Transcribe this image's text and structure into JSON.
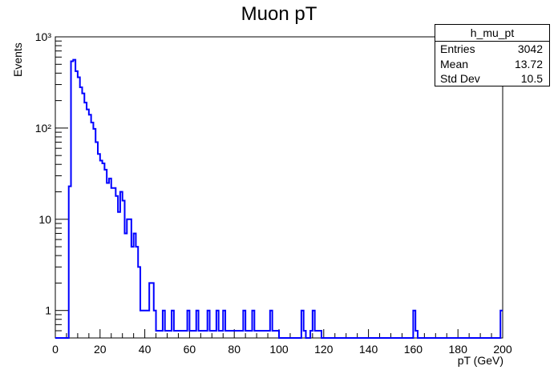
{
  "chart_data": {
    "type": "histogram",
    "title": "Muon pT",
    "xlabel": "pT (GeV)",
    "ylabel": "Events",
    "xlim": [
      0,
      200
    ],
    "ylim": [
      0.5,
      1000
    ],
    "y_scale": "log",
    "bin_width": 1,
    "x_ticks": [
      0,
      20,
      40,
      60,
      80,
      100,
      120,
      140,
      160,
      180,
      200
    ],
    "y_ticks": [
      {
        "value": 1,
        "label": "1"
      },
      {
        "value": 10,
        "label": "10"
      },
      {
        "value": 100,
        "label": "10²"
      },
      {
        "value": 1000,
        "label": "10³"
      }
    ],
    "line_color": "#0000ff",
    "bins": [
      [
        6,
        23
      ],
      [
        7,
        540
      ],
      [
        8,
        560
      ],
      [
        9,
        420
      ],
      [
        10,
        360
      ],
      [
        11,
        280
      ],
      [
        12,
        240
      ],
      [
        13,
        190
      ],
      [
        14,
        160
      ],
      [
        15,
        140
      ],
      [
        16,
        115
      ],
      [
        17,
        98
      ],
      [
        18,
        70
      ],
      [
        19,
        52
      ],
      [
        20,
        44
      ],
      [
        21,
        41
      ],
      [
        22,
        35
      ],
      [
        23,
        25
      ],
      [
        24,
        28
      ],
      [
        25,
        22
      ],
      [
        26,
        22
      ],
      [
        27,
        18
      ],
      [
        28,
        12
      ],
      [
        29,
        20
      ],
      [
        30,
        16
      ],
      [
        31,
        7
      ],
      [
        32,
        10
      ],
      [
        33,
        10
      ],
      [
        34,
        5
      ],
      [
        35,
        7
      ],
      [
        36,
        5
      ],
      [
        37,
        3
      ],
      [
        38,
        1
      ],
      [
        39,
        1
      ],
      [
        40,
        1
      ],
      [
        41,
        1
      ],
      [
        42,
        2
      ],
      [
        43,
        2
      ],
      [
        44,
        1
      ],
      [
        45,
        0.6
      ],
      [
        46,
        0.6
      ],
      [
        47,
        0.6
      ],
      [
        48,
        1
      ],
      [
        49,
        0.6
      ],
      [
        50,
        0.6
      ],
      [
        51,
        0.6
      ],
      [
        52,
        1
      ],
      [
        53,
        0.6
      ],
      [
        54,
        0.6
      ],
      [
        55,
        0.6
      ],
      [
        56,
        0.6
      ],
      [
        57,
        0.6
      ],
      [
        58,
        0.6
      ],
      [
        59,
        1
      ],
      [
        60,
        0.6
      ],
      [
        61,
        0.6
      ],
      [
        62,
        0.6
      ],
      [
        63,
        1
      ],
      [
        64,
        0.6
      ],
      [
        65,
        0.6
      ],
      [
        66,
        0.6
      ],
      [
        67,
        0.6
      ],
      [
        68,
        1
      ],
      [
        69,
        0.6
      ],
      [
        70,
        0.6
      ],
      [
        71,
        0.6
      ],
      [
        72,
        1
      ],
      [
        73,
        0.6
      ],
      [
        74,
        0.6
      ],
      [
        75,
        1
      ],
      [
        76,
        0.6
      ],
      [
        77,
        0.6
      ],
      [
        78,
        0.6
      ],
      [
        79,
        0.6
      ],
      [
        80,
        0.6
      ],
      [
        81,
        0.6
      ],
      [
        82,
        0.6
      ],
      [
        83,
        0.6
      ],
      [
        84,
        1
      ],
      [
        85,
        0.6
      ],
      [
        86,
        0.6
      ],
      [
        87,
        0.6
      ],
      [
        88,
        1
      ],
      [
        89,
        0.6
      ],
      [
        90,
        0.6
      ],
      [
        91,
        0.6
      ],
      [
        92,
        0.6
      ],
      [
        93,
        0.6
      ],
      [
        94,
        0.6
      ],
      [
        95,
        0.6
      ],
      [
        96,
        1
      ],
      [
        97,
        0.6
      ],
      [
        98,
        0.6
      ],
      [
        99,
        0.6
      ],
      [
        110,
        1
      ],
      [
        111,
        0.6
      ],
      [
        114,
        0.6
      ],
      [
        115,
        1
      ],
      [
        116,
        0.6
      ],
      [
        117,
        0.6
      ],
      [
        118,
        0.6
      ],
      [
        160,
        1
      ],
      [
        161,
        0.6
      ],
      [
        199,
        1
      ]
    ],
    "stats_box": {
      "name": "h_mu_pt",
      "entries_label": "Entries",
      "entries": "3042",
      "mean_label": "Mean",
      "mean": "13.72",
      "stddev_label": "Std Dev",
      "stddev": "10.5"
    }
  }
}
